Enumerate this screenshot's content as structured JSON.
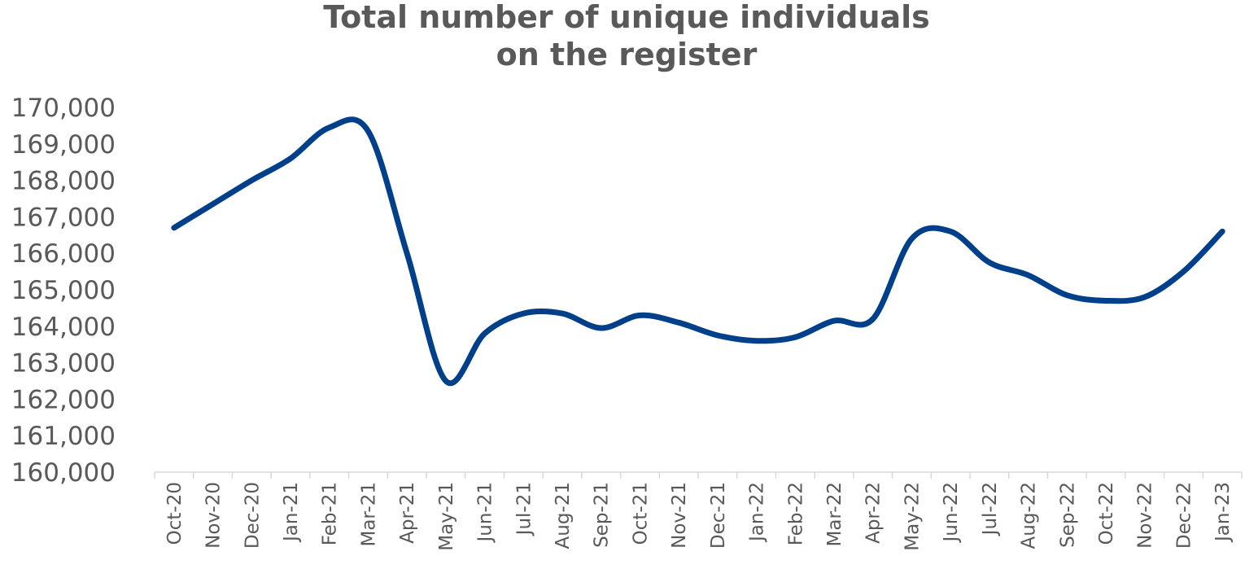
{
  "chart_data": {
    "type": "line",
    "title": [
      "Total number of unique individuals",
      "on the register"
    ],
    "xlabel": "",
    "ylabel": "",
    "categories": [
      "Oct-20",
      "Nov-20",
      "Dec-20",
      "Jan-21",
      "Feb-21",
      "Mar-21",
      "Apr-21",
      "May-21",
      "Jun-21",
      "Jul-21",
      "Aug-21",
      "Sep-21",
      "Oct-21",
      "Nov-21",
      "Dec-21",
      "Jan-22",
      "Feb-22",
      "Mar-22",
      "Apr-22",
      "May-22",
      "Jun-22",
      "Jul-22",
      "Aug-22",
      "Sep-22",
      "Oct-22",
      "Nov-22",
      "Dec-22",
      "Jan-23"
    ],
    "series": [
      {
        "color": "#003f8a",
        "values": [
          166700,
          167350,
          168000,
          168600,
          169450,
          169350,
          166000,
          162500,
          163800,
          164350,
          164350,
          163950,
          164300,
          164100,
          163750,
          163600,
          163700,
          164150,
          164200,
          166400,
          166600,
          165750,
          165400,
          164850,
          164700,
          164800,
          165500,
          166600
        ]
      }
    ],
    "ylim": [
      160000,
      170000
    ],
    "yticks": [
      160000,
      161000,
      162000,
      163000,
      164000,
      165000,
      166000,
      167000,
      168000,
      169000,
      170000
    ],
    "ytick_labels": [
      "160,000",
      "161,000",
      "162,000",
      "163,000",
      "164,000",
      "165,000",
      "166,000",
      "167,000",
      "168,000",
      "169,000",
      "170,000"
    ],
    "grid": false,
    "legend": "none"
  }
}
